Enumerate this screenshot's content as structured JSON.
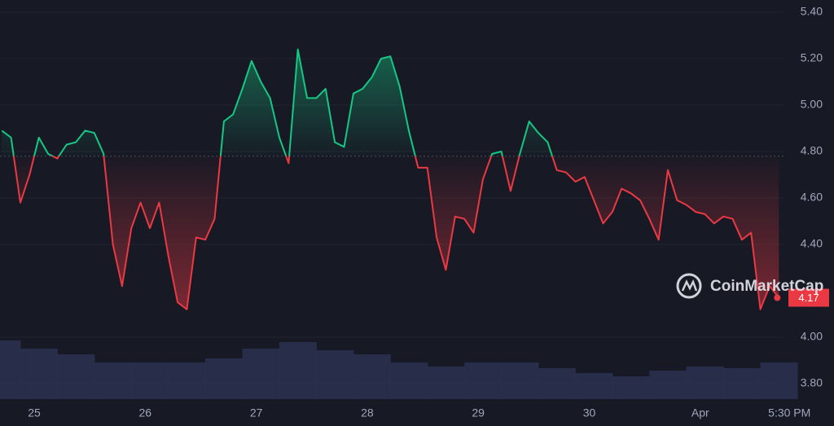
{
  "chart_data": {
    "type": "line",
    "watermark": "CoinMarketCap",
    "x": [
      -7,
      -5,
      -3,
      -1,
      1,
      3,
      5,
      7,
      9,
      11,
      13,
      15,
      17,
      19,
      21,
      23,
      25,
      27,
      29,
      31,
      33,
      35,
      37,
      39,
      41,
      43,
      45,
      47,
      49,
      51,
      53,
      55,
      57,
      59,
      61,
      63,
      65,
      67,
      69,
      71,
      73,
      75,
      77,
      79,
      81,
      83,
      85,
      87,
      89,
      91,
      93,
      95,
      97,
      99,
      101,
      103,
      105,
      107,
      109,
      111,
      113,
      115,
      117,
      119,
      121,
      123,
      125,
      127,
      129,
      131,
      133,
      135,
      137,
      139,
      141,
      143,
      145,
      147,
      149,
      151,
      153,
      155,
      157,
      159,
      161
    ],
    "series": [
      {
        "values": [
          4.89,
          4.86,
          4.58,
          4.7,
          4.86,
          4.79,
          4.77,
          4.83,
          4.84,
          4.89,
          4.88,
          4.79,
          4.4,
          4.22,
          4.47,
          4.58,
          4.47,
          4.58,
          4.35,
          4.15,
          4.12,
          4.43,
          4.42,
          4.51,
          4.93,
          4.96,
          5.07,
          5.19,
          5.1,
          5.03,
          4.86,
          4.75,
          5.24,
          5.03,
          5.03,
          5.07,
          4.84,
          4.82,
          5.05,
          5.07,
          5.12,
          5.2,
          5.21,
          5.08,
          4.89,
          4.73,
          4.73,
          4.43,
          4.29,
          4.52,
          4.51,
          4.45,
          4.68,
          4.79,
          4.8,
          4.63,
          4.79,
          4.93,
          4.88,
          4.84,
          4.72,
          4.71,
          4.67,
          4.69,
          4.59,
          4.49,
          4.54,
          4.64,
          4.62,
          4.59,
          4.51,
          4.42,
          4.72,
          4.59,
          4.57,
          4.54,
          4.53,
          4.49,
          4.52,
          4.51,
          4.42,
          4.45,
          4.12,
          4.22,
          4.17
        ],
        "up_color": "#16c784",
        "down_color": "#ea3943"
      }
    ],
    "baseline": 4.78,
    "volume": {
      "x": [
        -7,
        1,
        9,
        17,
        25,
        33,
        41,
        49,
        57,
        65,
        73,
        81,
        89,
        97,
        105,
        113,
        121,
        129,
        137,
        145,
        153,
        161
      ],
      "values": [
        72,
        62,
        55,
        45,
        45,
        45,
        50,
        62,
        70,
        60,
        55,
        45,
        40,
        45,
        45,
        38,
        32,
        28,
        35,
        40,
        38,
        45
      ],
      "color": "#2b3350"
    },
    "xlim": [
      -7.4,
      162
    ],
    "xticks": [
      {
        "value": 0,
        "label": "25"
      },
      {
        "value": 24,
        "label": "26"
      },
      {
        "value": 48,
        "label": "27"
      },
      {
        "value": 72,
        "label": "28"
      },
      {
        "value": 96,
        "label": "29"
      },
      {
        "value": 120,
        "label": "30"
      },
      {
        "value": 144,
        "label": "Apr"
      },
      {
        "value": 161.5,
        "label": "5:30 PM"
      }
    ],
    "ylim": [
      3.8,
      5.4
    ],
    "yticks": [
      {
        "value": 3.8,
        "label": "3.80"
      },
      {
        "value": 4.0,
        "label": "4.00"
      },
      {
        "value": 4.4,
        "label": "4.40"
      },
      {
        "value": 4.6,
        "label": "4.60"
      },
      {
        "value": 4.8,
        "label": "4.80"
      },
      {
        "value": 5.0,
        "label": "5.00"
      },
      {
        "value": 5.2,
        "label": "5.20"
      },
      {
        "value": 5.4,
        "label": "5.40"
      }
    ],
    "grid": true
  }
}
